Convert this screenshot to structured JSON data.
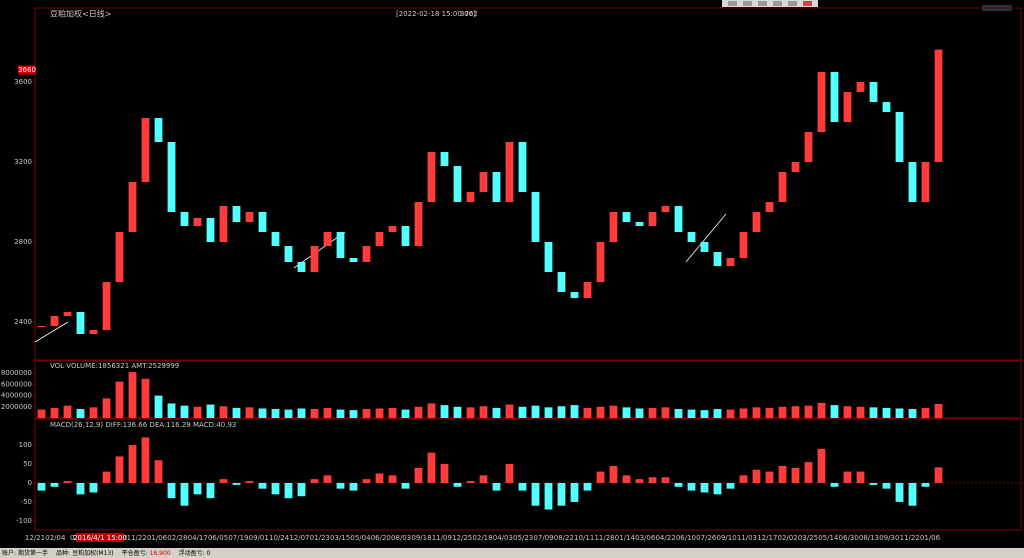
{
  "header": {
    "title": "豆粕加权<日线>",
    "timestamp": "[2022-02-18 15:00:00]",
    "price": "3762"
  },
  "chart_data": [
    {
      "type": "candlestick",
      "up_color": "#ff3c3c",
      "down_color": "#54ffff",
      "values": [
        2380,
        2430,
        2450,
        2340,
        2360,
        2600,
        2850,
        3100,
        3420,
        3300,
        2950,
        2880,
        2920,
        2800,
        2980,
        2900,
        2950,
        2850,
        2780,
        2700,
        2650,
        2780,
        2850,
        2720,
        2700,
        2780,
        2850,
        2880,
        2780,
        3000,
        3250,
        3180,
        3000,
        3050,
        3150,
        3000,
        3300,
        3050,
        2800,
        2650,
        2550,
        2520,
        2600,
        2800,
        2950,
        2900,
        2880,
        2950,
        2980,
        2850,
        2800,
        2750,
        2680,
        2720,
        2850,
        2950,
        3000,
        3150,
        3200,
        3350,
        3650,
        3400,
        3550,
        3600,
        3500,
        3450,
        3200,
        3000,
        3200,
        3762
      ],
      "ylim": [
        2210,
        3970
      ],
      "yticks": [
        2400,
        2800,
        3200,
        3600
      ],
      "price_tag": 3660
    },
    {
      "type": "volume",
      "legend": "VOL  VOLUME:1856321  AMT:2529999",
      "values": [
        1500000,
        1800000,
        2200000,
        1600000,
        1900000,
        3500000,
        6500000,
        8200000,
        7000000,
        4000000,
        2600000,
        2200000,
        2000000,
        2400000,
        2100000,
        1800000,
        1900000,
        1700000,
        1600000,
        1500000,
        1700000,
        1600000,
        1800000,
        1500000,
        1400000,
        1600000,
        1700000,
        1800000,
        1500000,
        2000000,
        2600000,
        2300000,
        2000000,
        1900000,
        2100000,
        1800000,
        2400000,
        2000000,
        2200000,
        1900000,
        2100000,
        2300000,
        1800000,
        2000000,
        2200000,
        1900000,
        1700000,
        1800000,
        1900000,
        1600000,
        1500000,
        1400000,
        1600000,
        1500000,
        1700000,
        1900000,
        1800000,
        2000000,
        2100000,
        2200000,
        2700000,
        2300000,
        2100000,
        2000000,
        1900000,
        1800000,
        1700000,
        1600000,
        1800000,
        2500000
      ],
      "ylim": [
        0,
        10000000
      ],
      "yticks": [
        2000000,
        4000000,
        6000000,
        8000000
      ]
    },
    {
      "type": "macd",
      "legend": "MACD(26,12,9)  DIFF:136.66  DEA:116.29  MACD:40.93",
      "values": [
        -20,
        -10,
        5,
        -30,
        -25,
        30,
        70,
        100,
        120,
        60,
        -40,
        -60,
        -30,
        -40,
        10,
        -5,
        5,
        -15,
        -30,
        -40,
        -35,
        10,
        20,
        -15,
        -20,
        10,
        25,
        20,
        -15,
        40,
        80,
        50,
        -10,
        5,
        20,
        -20,
        50,
        -20,
        -60,
        -70,
        -60,
        -50,
        -20,
        30,
        45,
        20,
        10,
        15,
        15,
        -10,
        -20,
        -25,
        -30,
        -15,
        20,
        35,
        30,
        45,
        40,
        55,
        90,
        -10,
        30,
        30,
        -5,
        -15,
        -50,
        -60,
        -10,
        41
      ],
      "ylim": [
        -124,
        166
      ],
      "yticks": [
        -100,
        -50,
        0,
        50,
        100
      ]
    }
  ],
  "x_labels": [
    "12/21",
    "02/04",
    "03/",
    "08/15",
    "09/30",
    "11/22",
    "01/06",
    "02/28",
    "04/17",
    "06/05",
    "07/19",
    "09/01",
    "10/24",
    "12/07",
    "01/23",
    "03/15",
    "05/04",
    "06/20",
    "08/03",
    "09/18",
    "11/09",
    "12/25",
    "02/18",
    "04/03",
    "05/23",
    "07/09",
    "08/22",
    "10/11",
    "11/28",
    "01/14",
    "03/06",
    "04/22",
    "06/10",
    "07/26",
    "09/10",
    "11/03",
    "12/17",
    "02/02",
    "03/25",
    "05/14",
    "06/30",
    "08/13",
    "09/30",
    "11/22",
    "01/06"
  ],
  "cursor_label": "2016/4/1 15:00",
  "status_bar": [
    "账户:",
    "期货第一手",
    "品种:",
    "豆粕加权(M13)",
    "平仓盈亏:",
    "18,900",
    "浮动盈亏:",
    "0"
  ]
}
